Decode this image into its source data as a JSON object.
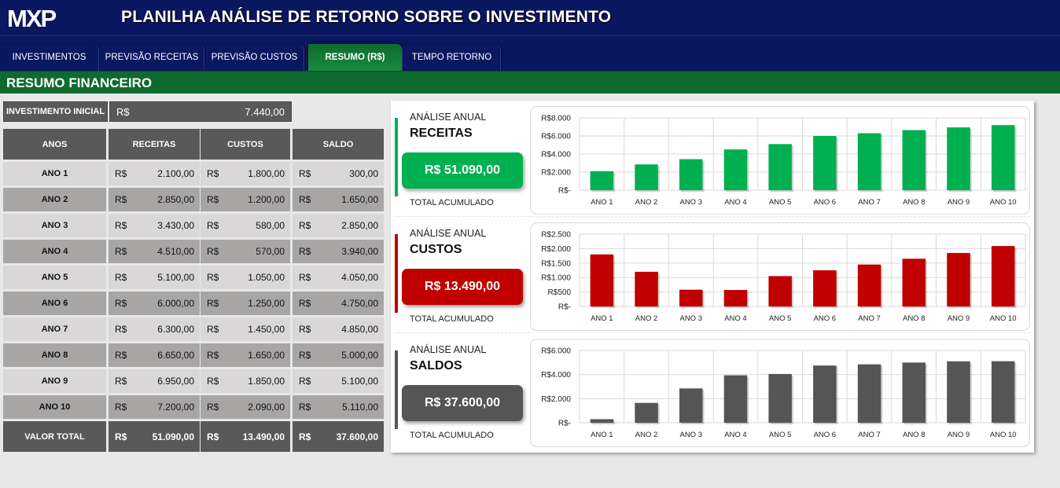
{
  "header": {
    "logo_text": "MXP",
    "title": "PLANILHA ANÁLISE DE RETORNO SOBRE O INVESTIMENTO"
  },
  "tabs": [
    {
      "label": "INVESTIMENTOS",
      "active": false
    },
    {
      "label": "PREVISÃO RECEITAS",
      "active": false
    },
    {
      "label": "PREVISÃO CUSTOS",
      "active": false
    },
    {
      "label": "RESUMO (R$)",
      "active": true
    },
    {
      "label": "TEMPO RETORNO",
      "active": false
    }
  ],
  "section_title": "RESUMO FINANCEIRO",
  "investment": {
    "label": "INVESTIMENTO INICIAL",
    "currency": "R$",
    "value": "7.440,00"
  },
  "table": {
    "currency": "R$",
    "headers": [
      "ANOS",
      "RECEITAS",
      "CUSTOS",
      "SALDO"
    ],
    "rows": [
      {
        "year": "ANO 1",
        "receitas": "2.100,00",
        "custos": "1.800,00",
        "saldo": "300,00"
      },
      {
        "year": "ANO 2",
        "receitas": "2.850,00",
        "custos": "1.200,00",
        "saldo": "1.650,00"
      },
      {
        "year": "ANO 3",
        "receitas": "3.430,00",
        "custos": "580,00",
        "saldo": "2.850,00"
      },
      {
        "year": "ANO 4",
        "receitas": "4.510,00",
        "custos": "570,00",
        "saldo": "3.940,00"
      },
      {
        "year": "ANO 5",
        "receitas": "5.100,00",
        "custos": "1.050,00",
        "saldo": "4.050,00"
      },
      {
        "year": "ANO 6",
        "receitas": "6.000,00",
        "custos": "1.250,00",
        "saldo": "4.750,00"
      },
      {
        "year": "ANO 7",
        "receitas": "6.300,00",
        "custos": "1.450,00",
        "saldo": "4.850,00"
      },
      {
        "year": "ANO 8",
        "receitas": "6.650,00",
        "custos": "1.650,00",
        "saldo": "5.000,00"
      },
      {
        "year": "ANO 9",
        "receitas": "6.950,00",
        "custos": "1.850,00",
        "saldo": "5.100,00"
      },
      {
        "year": "ANO 10",
        "receitas": "7.200,00",
        "custos": "2.090,00",
        "saldo": "5.110,00"
      }
    ],
    "footer": {
      "label": "VALOR TOTAL",
      "receitas": "51.090,00",
      "custos": "13.490,00",
      "saldo": "37.600,00"
    }
  },
  "summaries": [
    {
      "subtitle": "ANÁLISE ANUAL",
      "title": "RECEITAS",
      "total": "R$ 51.090,00",
      "footnote": "TOTAL ACUMULADO",
      "color": "#00b050"
    },
    {
      "subtitle": "ANÁLISE ANUAL",
      "title": "CUSTOS",
      "total": "R$ 13.490,00",
      "footnote": "TOTAL ACUMULADO",
      "color": "#c00000"
    },
    {
      "subtitle": "ANÁLISE ANUAL",
      "title": "SALDOS",
      "total": "R$ 37.600,00",
      "footnote": "TOTAL ACUMULADO",
      "color": "#555555"
    }
  ],
  "chart_data": [
    {
      "type": "bar",
      "categories": [
        "ANO 1",
        "ANO 2",
        "ANO 3",
        "ANO 4",
        "ANO 5",
        "ANO 6",
        "ANO 7",
        "ANO 8",
        "ANO 9",
        "ANO 10"
      ],
      "values": [
        2100,
        2850,
        3430,
        4510,
        5100,
        6000,
        6300,
        6650,
        6950,
        7200
      ],
      "ylim": [
        0,
        8000
      ],
      "yticks": [
        0,
        2000,
        4000,
        6000,
        8000
      ],
      "ytick_labels": [
        "R$-",
        "R$2.000",
        "R$4.000",
        "R$6.000",
        "R$8.000"
      ],
      "grid": true,
      "color": "#00b050"
    },
    {
      "type": "bar",
      "categories": [
        "ANO 1",
        "ANO 2",
        "ANO 3",
        "ANO 4",
        "ANO 5",
        "ANO 6",
        "ANO 7",
        "ANO 8",
        "ANO 9",
        "ANO 10"
      ],
      "values": [
        1800,
        1200,
        580,
        570,
        1050,
        1250,
        1450,
        1650,
        1850,
        2090
      ],
      "ylim": [
        0,
        2500
      ],
      "yticks": [
        0,
        500,
        1000,
        1500,
        2000,
        2500
      ],
      "ytick_labels": [
        "R$-",
        "R$500",
        "R$1.000",
        "R$1.500",
        "R$2.000",
        "R$2.500"
      ],
      "grid": true,
      "color": "#c00000"
    },
    {
      "type": "bar",
      "categories": [
        "ANO 1",
        "ANO 2",
        "ANO 3",
        "ANO 4",
        "ANO 5",
        "ANO 6",
        "ANO 7",
        "ANO 8",
        "ANO 9",
        "ANO 10"
      ],
      "values": [
        300,
        1650,
        2850,
        3940,
        4050,
        4750,
        4850,
        5000,
        5100,
        5110
      ],
      "ylim": [
        0,
        6000
      ],
      "yticks": [
        0,
        2000,
        4000,
        6000
      ],
      "ytick_labels": [
        "R$-",
        "R$2.000",
        "R$4.000",
        "R$6.000"
      ],
      "grid": true,
      "color": "#555555"
    }
  ]
}
